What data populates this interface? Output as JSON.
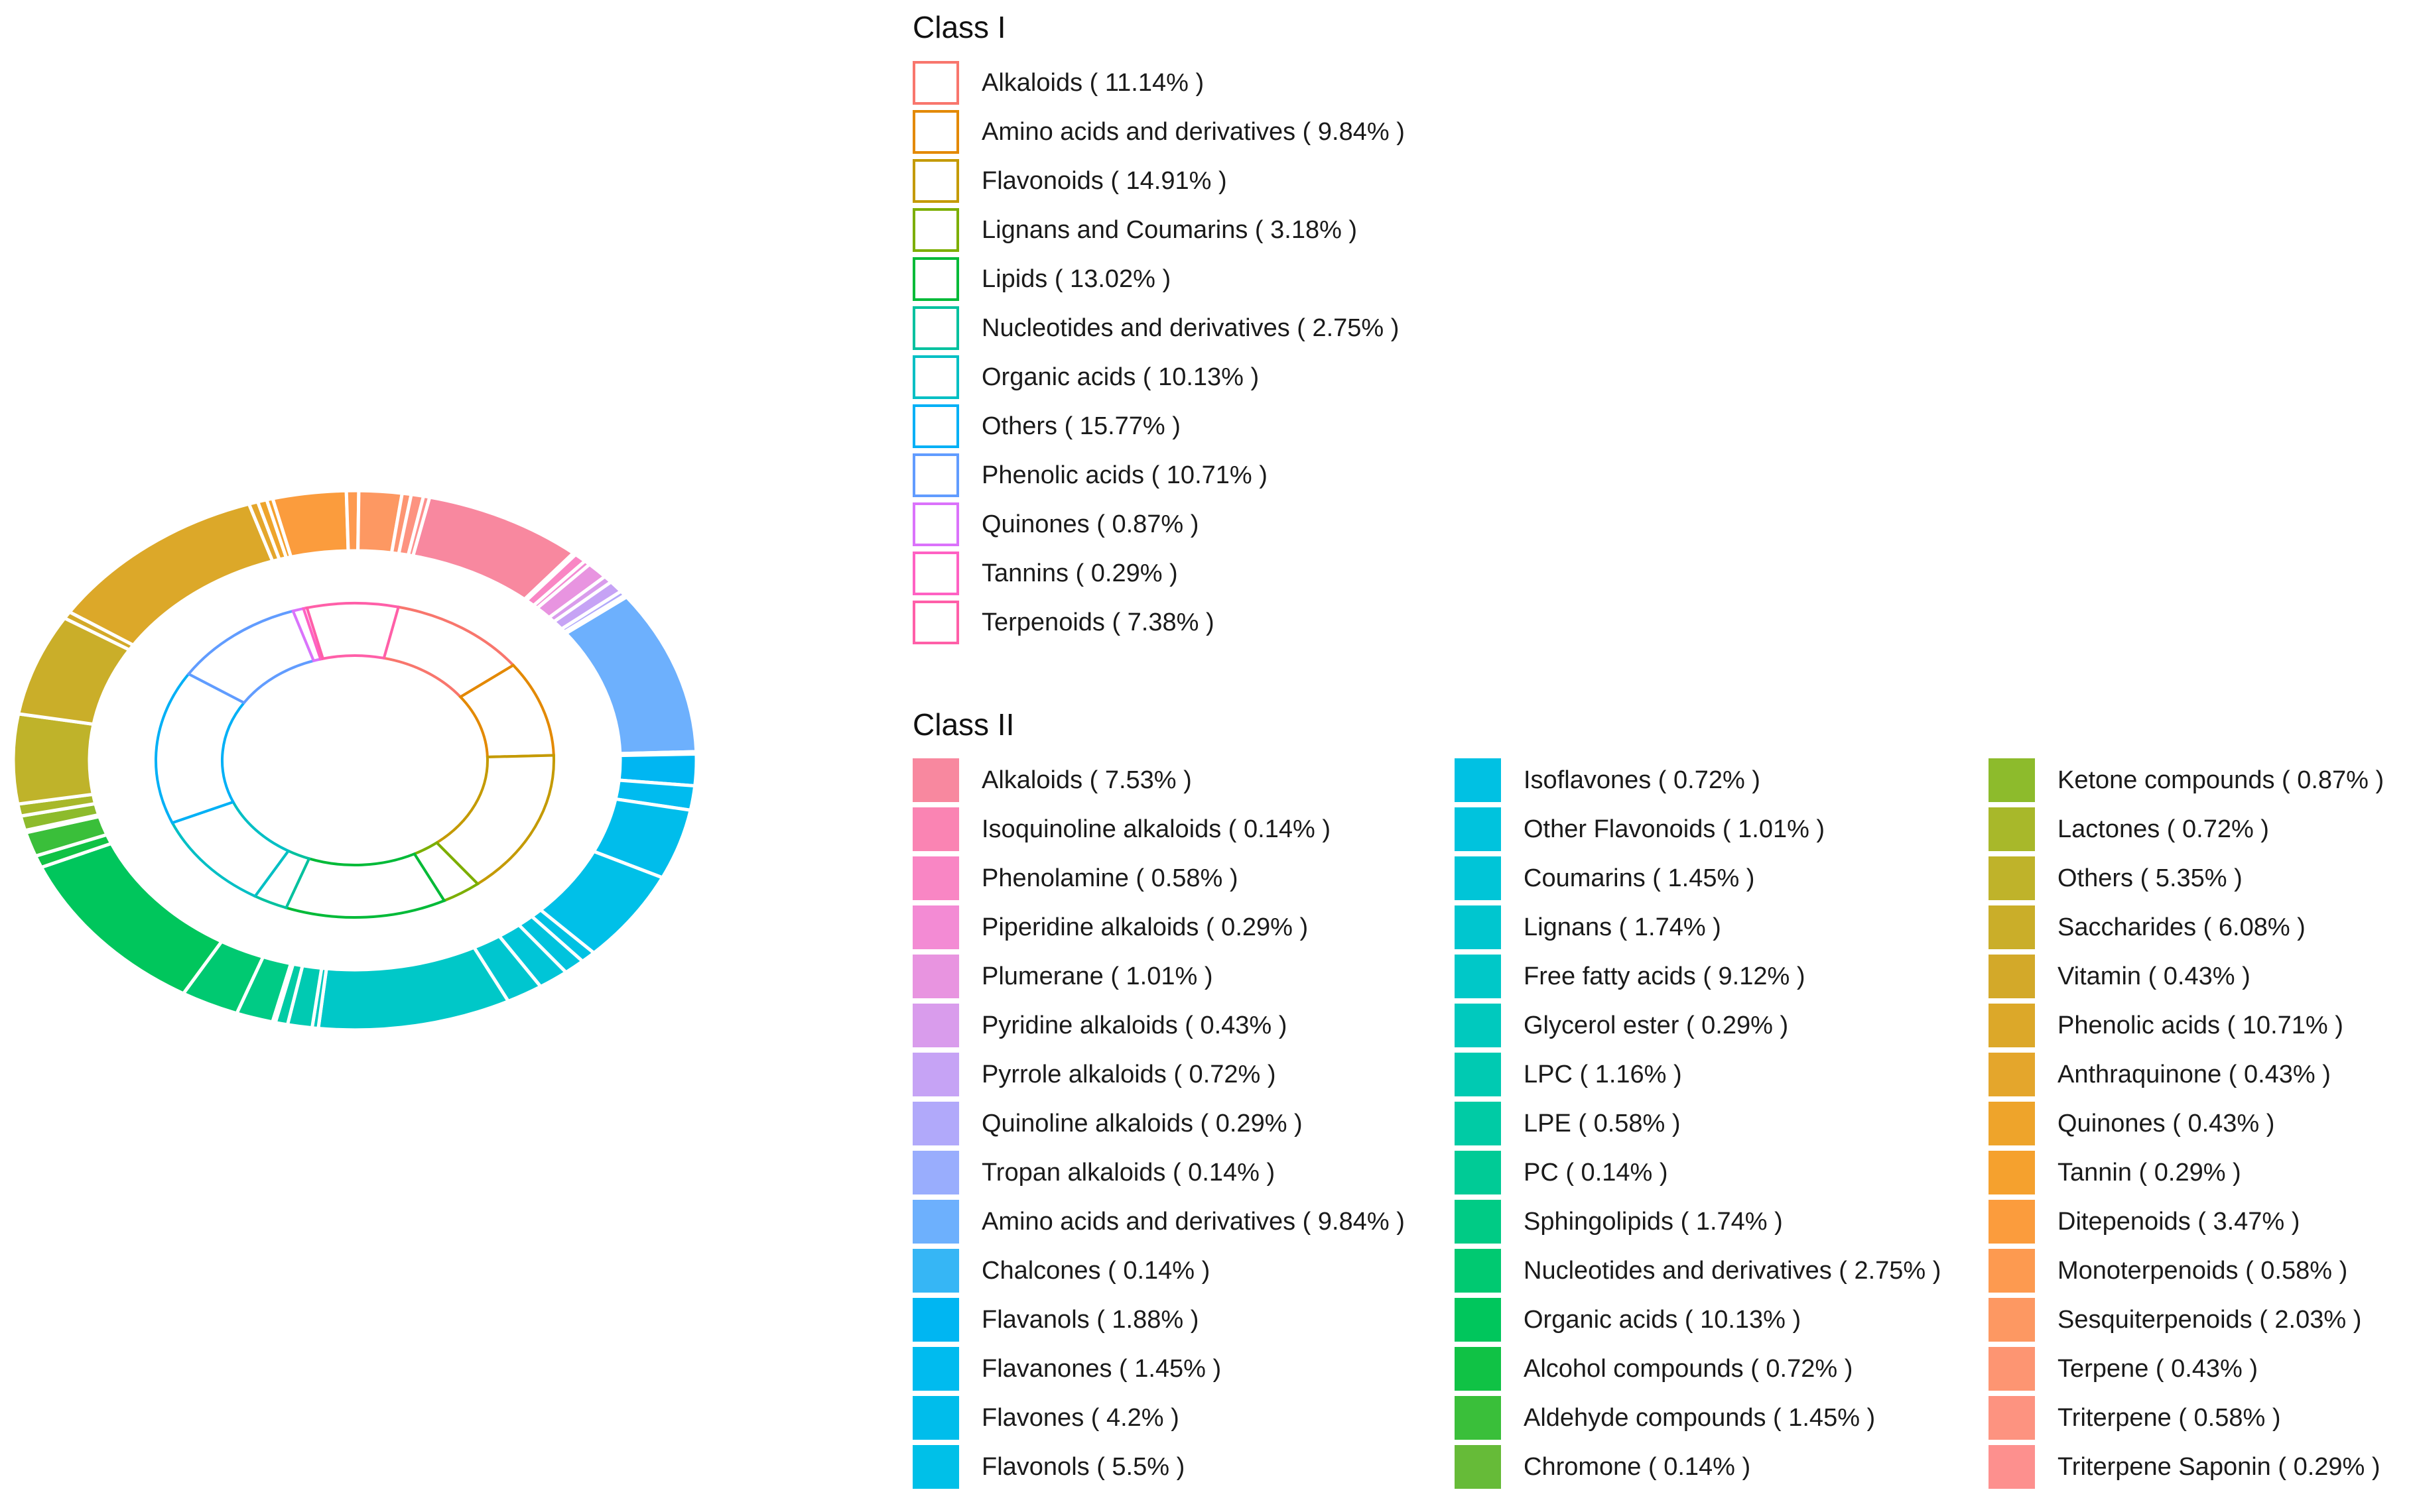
{
  "chart_data": {
    "type": "sunburst",
    "legend_position": "right",
    "class1": {
      "title": "Class I",
      "items": [
        {
          "name": "Alkaloids",
          "pct": 11.14,
          "label": "Alkaloids ( 11.14% )",
          "color": "#F8766D"
        },
        {
          "name": "Amino acids and derivatives",
          "pct": 9.84,
          "label": "Amino acids and derivatives ( 9.84% )",
          "color": "#E38900"
        },
        {
          "name": "Flavonoids",
          "pct": 14.91,
          "label": "Flavonoids ( 14.91% )",
          "color": "#C49A00"
        },
        {
          "name": "Lignans and Coumarins",
          "pct": 3.18,
          "label": "Lignans and Coumarins ( 3.18% )",
          "color": "#7CAE00"
        },
        {
          "name": "Lipids",
          "pct": 13.02,
          "label": "Lipids ( 13.02% )",
          "color": "#00BA38"
        },
        {
          "name": "Nucleotides and derivatives",
          "pct": 2.75,
          "label": "Nucleotides and derivatives ( 2.75% )",
          "color": "#00C19F"
        },
        {
          "name": "Organic acids",
          "pct": 10.13,
          "label": "Organic acids ( 10.13% )",
          "color": "#00BFC4"
        },
        {
          "name": "Others",
          "pct": 15.77,
          "label": "Others ( 15.77% )",
          "color": "#00B0F6"
        },
        {
          "name": "Phenolic acids",
          "pct": 10.71,
          "label": "Phenolic acids ( 10.71% )",
          "color": "#619CFF"
        },
        {
          "name": "Quinones",
          "pct": 0.87,
          "label": "Quinones ( 0.87% )",
          "color": "#DB72FB"
        },
        {
          "name": "Tannins",
          "pct": 0.29,
          "label": "Tannins ( 0.29% )",
          "color": "#FF61C3"
        },
        {
          "name": "Terpenoids",
          "pct": 7.38,
          "label": "Terpenoids ( 7.38% )",
          "color": "#FF5FA8"
        }
      ]
    },
    "class2": {
      "title": "Class II",
      "items": [
        {
          "name": "Alkaloids",
          "pct": 7.53,
          "label": "Alkaloids ( 7.53% )",
          "color": "#F8889F"
        },
        {
          "name": "Isoquinoline alkaloids",
          "pct": 0.14,
          "label": "Isoquinoline alkaloids ( 0.14% )",
          "color": "#FA84B3"
        },
        {
          "name": "Phenolamine",
          "pct": 0.58,
          "label": "Phenolamine ( 0.58% )",
          "color": "#F986C4"
        },
        {
          "name": "Piperidine alkaloids",
          "pct": 0.29,
          "label": "Piperidine alkaloids ( 0.29% )",
          "color": "#F38BD4"
        },
        {
          "name": "Plumerane",
          "pct": 1.01,
          "label": "Plumerane ( 1.01% )",
          "color": "#E894E0"
        },
        {
          "name": "Pyridine alkaloids",
          "pct": 0.43,
          "label": "Pyridine alkaloids ( 0.43% )",
          "color": "#D99CEC"
        },
        {
          "name": "Pyrrole alkaloids",
          "pct": 0.72,
          "label": "Pyrrole alkaloids ( 0.72% )",
          "color": "#C6A3F5"
        },
        {
          "name": "Quinoline alkaloids",
          "pct": 0.29,
          "label": "Quinoline alkaloids ( 0.29% )",
          "color": "#B1A9FA"
        },
        {
          "name": "Tropan alkaloids",
          "pct": 0.14,
          "label": "Tropan alkaloids ( 0.14% )",
          "color": "#99ADFD"
        },
        {
          "name": "Amino acids and derivatives",
          "pct": 9.84,
          "label": "Amino acids and derivatives ( 9.84% )",
          "color": "#6DB0FD"
        },
        {
          "name": "Chalcones",
          "pct": 0.14,
          "label": "Chalcones ( 0.14% )",
          "color": "#36B6F5"
        },
        {
          "name": "Flavanols",
          "pct": 1.88,
          "label": "Flavanols ( 1.88% )",
          "color": "#00B6F2"
        },
        {
          "name": "Flavanones",
          "pct": 1.45,
          "label": "Flavanones ( 1.45% )",
          "color": "#00BBEF"
        },
        {
          "name": "Flavones",
          "pct": 4.2,
          "label": "Flavones ( 4.2% )",
          "color": "#00BDEB"
        },
        {
          "name": "Flavonols",
          "pct": 5.5,
          "label": "Flavonols ( 5.5% )",
          "color": "#00C0E8"
        },
        {
          "name": "Isoflavones",
          "pct": 0.72,
          "label": "Isoflavones ( 0.72% )",
          "color": "#00C1E3"
        },
        {
          "name": "Other Flavonoids",
          "pct": 1.01,
          "label": "Other Flavonoids ( 1.01% )",
          "color": "#00C3DD"
        },
        {
          "name": "Coumarins",
          "pct": 1.45,
          "label": "Coumarins ( 1.45% )",
          "color": "#00C5D7"
        },
        {
          "name": "Lignans",
          "pct": 1.74,
          "label": "Lignans ( 1.74% )",
          "color": "#00C6CF"
        },
        {
          "name": "Free fatty acids",
          "pct": 9.12,
          "label": "Free fatty acids ( 9.12% )",
          "color": "#00C8C8"
        },
        {
          "name": "Glycerol ester",
          "pct": 0.29,
          "label": "Glycerol ester ( 0.29% )",
          "color": "#00C9BE"
        },
        {
          "name": "LPC",
          "pct": 1.16,
          "label": "LPC ( 1.16% )",
          "color": "#00CAB2"
        },
        {
          "name": "LPE",
          "pct": 0.58,
          "label": "LPE ( 0.58% )",
          "color": "#00CBA5"
        },
        {
          "name": "PC",
          "pct": 0.14,
          "label": "PC ( 0.14% )",
          "color": "#00CB96"
        },
        {
          "name": "Sphingolipids",
          "pct": 1.74,
          "label": "Sphingolipids ( 1.74% )",
          "color": "#00CB85"
        },
        {
          "name": "Nucleotides and derivatives",
          "pct": 2.75,
          "label": "Nucleotides and derivatives ( 2.75% )",
          "color": "#00C971"
        },
        {
          "name": "Organic acids",
          "pct": 10.13,
          "label": "Organic acids ( 10.13% )",
          "color": "#00C65C"
        },
        {
          "name": "Alcohol compounds",
          "pct": 0.72,
          "label": "Alcohol compounds ( 0.72% )",
          "color": "#10C245"
        },
        {
          "name": "Aldehyde compounds",
          "pct": 1.45,
          "label": "Aldehyde compounds ( 1.45% )",
          "color": "#3ABF3A"
        },
        {
          "name": "Chromone",
          "pct": 0.14,
          "label": "Chromone ( 0.14% )",
          "color": "#66BB38"
        },
        {
          "name": "Ketone compounds",
          "pct": 0.87,
          "label": "Ketone compounds ( 0.87% )",
          "color": "#8DBB2C"
        },
        {
          "name": "Lactones",
          "pct": 0.72,
          "label": "Lactones ( 0.72% )",
          "color": "#A8B82A"
        },
        {
          "name": "Others",
          "pct": 5.35,
          "label": "Others ( 5.35% )",
          "color": "#BFB32A"
        },
        {
          "name": "Saccharides",
          "pct": 6.08,
          "label": "Saccharides ( 6.08% )",
          "color": "#CAAE29"
        },
        {
          "name": "Vitamin",
          "pct": 0.43,
          "label": "Vitamin ( 0.43% )",
          "color": "#D3A929"
        },
        {
          "name": "Phenolic acids",
          "pct": 10.71,
          "label": "Phenolic acids ( 10.71% )",
          "color": "#DCA829"
        },
        {
          "name": "Anthraquinone",
          "pct": 0.43,
          "label": "Anthraquinone ( 0.43% )",
          "color": "#E4A62C"
        },
        {
          "name": "Quinones",
          "pct": 0.43,
          "label": "Quinones ( 0.43% )",
          "color": "#EEA42B"
        },
        {
          "name": "Tannin",
          "pct": 0.29,
          "label": "Tannin ( 0.29% )",
          "color": "#F5A12E"
        },
        {
          "name": "Ditepenoids",
          "pct": 3.47,
          "label": "Ditepenoids ( 3.47% )",
          "color": "#FB9C3D"
        },
        {
          "name": "Monoterpenoids",
          "pct": 0.58,
          "label": "Monoterpenoids ( 0.58% )",
          "color": "#FD9A50"
        },
        {
          "name": "Sesquiterpenoids",
          "pct": 2.03,
          "label": "Sesquiterpenoids ( 2.03% )",
          "color": "#FD9862"
        },
        {
          "name": "Terpene",
          "pct": 0.43,
          "label": "Terpene ( 0.43% )",
          "color": "#FD9572"
        },
        {
          "name": "Triterpene",
          "pct": 0.58,
          "label": "Triterpene ( 0.58% )",
          "color": "#FD9380"
        },
        {
          "name": "Triterpene Saponin",
          "pct": 0.29,
          "label": "Triterpene Saponin ( 0.29% )",
          "color": "#FD908E"
        }
      ]
    }
  }
}
